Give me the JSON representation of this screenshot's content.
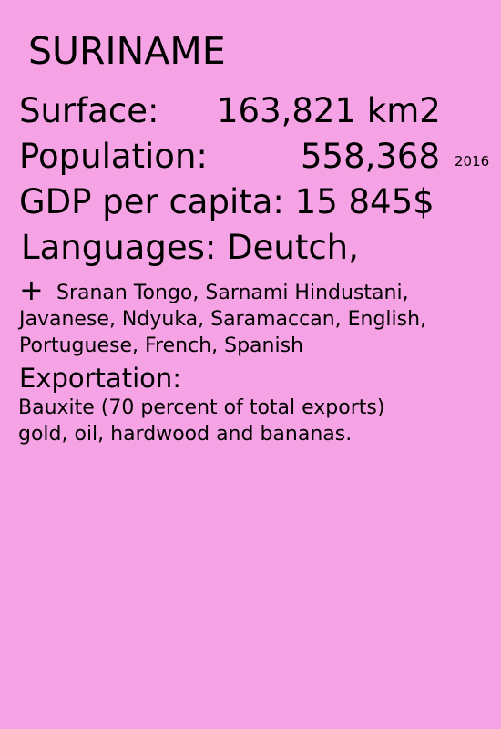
{
  "card": {
    "country": "SURINAME",
    "surface": {
      "label": "Surface:",
      "value": "163,821 km2"
    },
    "population": {
      "label": "Population:",
      "value": "558,368",
      "year": "2016"
    },
    "gdp": {
      "label": "GDP per capita:",
      "value": "15 845$"
    },
    "languages": {
      "label": "Languages:",
      "primary": "Deutch,",
      "plus": "+",
      "others": "Sranan Tongo, Sarnami Hindustani, Javanese, Ndyuka, Saramaccan, English, Portuguese, French, Spanish"
    },
    "exportation": {
      "heading": "Exportation:",
      "lines": [
        "Bauxite (70 percent of total exports)",
        "gold, oil, hardwood and bananas."
      ]
    }
  },
  "colors": {
    "background": "#f5a3e5",
    "text": "#000000"
  }
}
